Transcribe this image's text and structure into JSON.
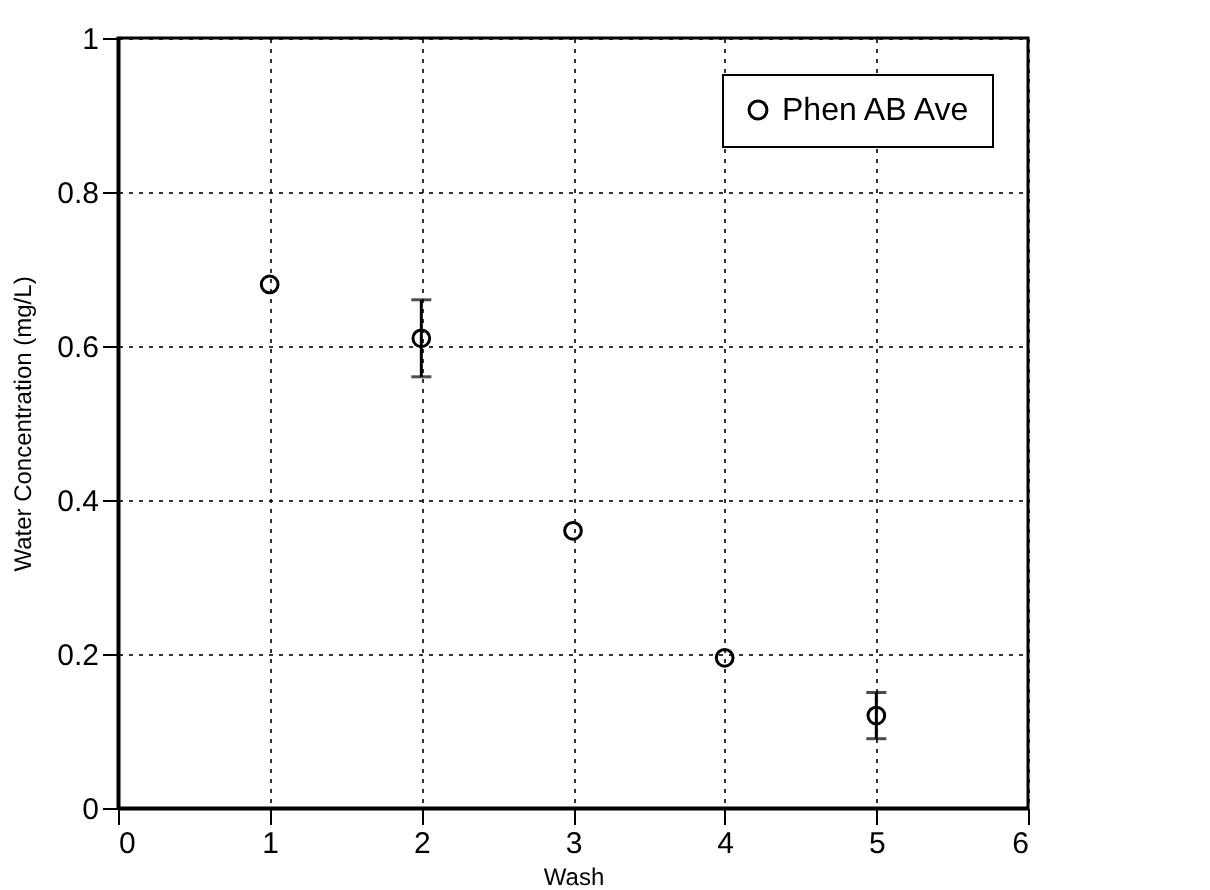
{
  "chart_data": {
    "type": "scatter",
    "xlabel": "Wash",
    "ylabel": "Water Concentration  (mg/L)",
    "x": [
      1,
      2,
      3,
      4,
      5
    ],
    "series": [
      {
        "name": "Phen AB Ave",
        "color": "#000000",
        "values": [
          0.68,
          0.61,
          0.36,
          0.195,
          0.12
        ],
        "errors": [
          null,
          0.05,
          null,
          null,
          0.03
        ]
      }
    ],
    "xlim": [
      0,
      6
    ],
    "xticks": [
      0,
      1,
      2,
      3,
      4,
      5,
      6
    ],
    "ylim": [
      0,
      1
    ],
    "yticks": [
      0,
      0.2,
      0.4,
      0.6,
      0.8,
      1
    ],
    "grid": true,
    "legend": "top right",
    "marker": "circle"
  }
}
